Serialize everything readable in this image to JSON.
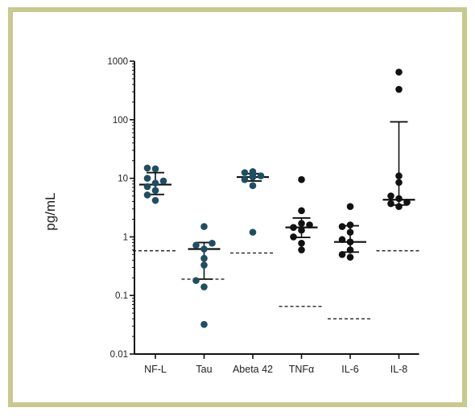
{
  "chart_data": {
    "type": "scatter",
    "scale": "log",
    "ylabel": "pg/mL",
    "ylim": [
      0.01,
      1000
    ],
    "yticks": [
      {
        "value": 1000,
        "label": "1000"
      },
      {
        "value": 100,
        "label": "100"
      },
      {
        "value": 10,
        "label": "10"
      },
      {
        "value": 1,
        "label": "1"
      },
      {
        "value": 0.1,
        "label": "0.1"
      },
      {
        "value": 0.01,
        "label": "0.01"
      }
    ],
    "categories": [
      "NF-L",
      "Tau",
      "Abeta 42",
      "TNFα",
      "IL-6",
      "IL-8"
    ],
    "groups": [
      {
        "name": "NF-L",
        "color": "#1f4e63",
        "points": [
          4.2,
          5.2,
          6.2,
          7.2,
          8.3,
          9.0,
          10.0,
          14.5,
          15.0
        ],
        "center": 7.8,
        "low": 5.3,
        "high": 12.5,
        "threshold": 0.58
      },
      {
        "name": "Tau",
        "color": "#1f4e63",
        "points": [
          0.032,
          0.14,
          0.18,
          0.33,
          0.43,
          0.62,
          0.72,
          0.78,
          1.5
        ],
        "center": 0.62,
        "low": 0.19,
        "high": 0.8,
        "threshold": 0.19
      },
      {
        "name": "Abeta 42",
        "color": "#1f4e63",
        "points": [
          1.2,
          7.5,
          9.5,
          10.5,
          11.0,
          11.5,
          12.0,
          12.5,
          13.0
        ],
        "center": 10.5,
        "low": 9.0,
        "high": 12.0,
        "threshold": 0.53
      },
      {
        "name": "TNFα",
        "color": "#111111",
        "points": [
          0.6,
          0.78,
          1.0,
          1.3,
          1.45,
          1.6,
          1.7,
          2.8,
          9.5
        ],
        "center": 1.45,
        "low": 0.98,
        "high": 2.1,
        "threshold": 0.065
      },
      {
        "name": "IL-6",
        "color": "#111111",
        "points": [
          0.45,
          0.5,
          0.6,
          0.82,
          0.9,
          1.2,
          1.5,
          1.6,
          3.3
        ],
        "center": 0.82,
        "low": 0.55,
        "high": 1.55,
        "threshold": 0.04
      },
      {
        "name": "IL-8",
        "color": "#111111",
        "points": [
          3.3,
          3.7,
          3.9,
          4.5,
          5.0,
          8.5,
          11.0,
          330,
          650
        ],
        "center": 4.3,
        "low": 3.5,
        "high": 92,
        "threshold": 0.58
      }
    ]
  }
}
